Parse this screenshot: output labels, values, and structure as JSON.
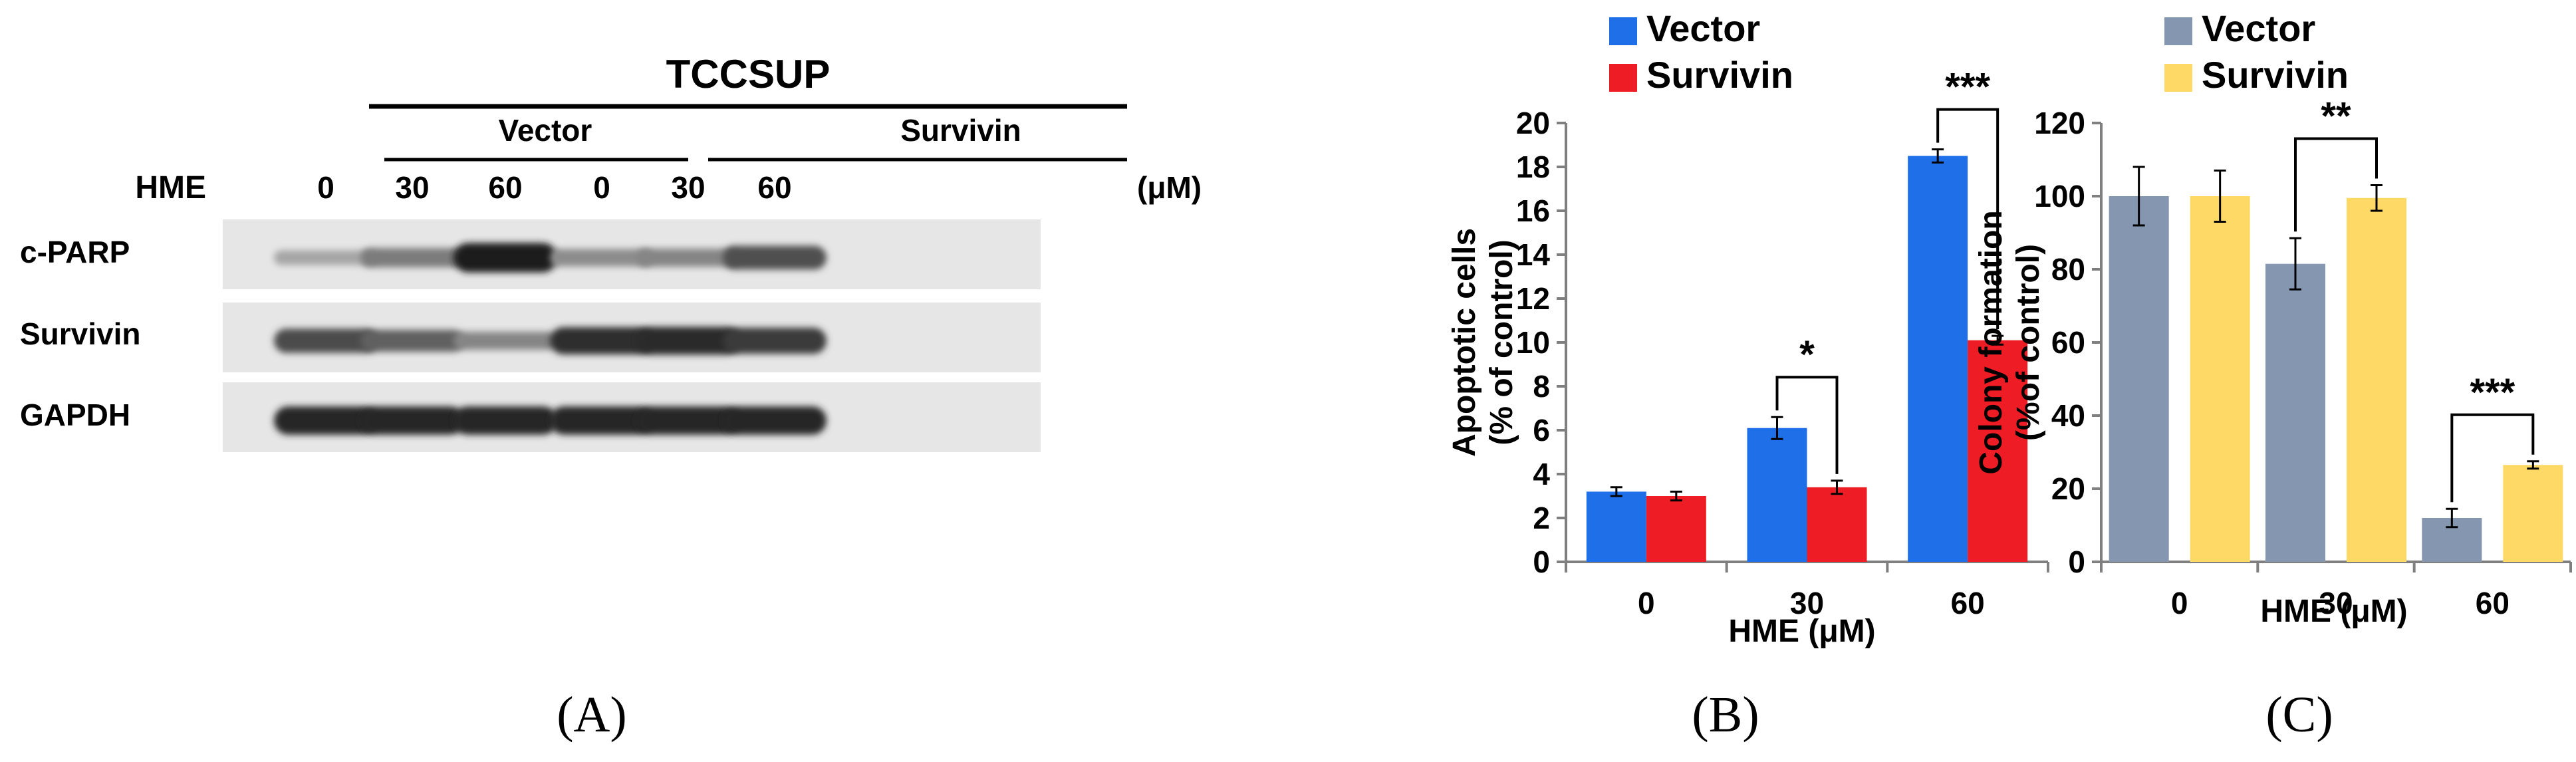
{
  "blot": {
    "cell_line": "TCCSUP",
    "groups": [
      "Vector",
      "Survivin"
    ],
    "row_label": "HME",
    "doses": [
      "0",
      "30",
      "60",
      "0",
      "30",
      "60"
    ],
    "unit": "(μM)",
    "bands": [
      {
        "label": "c-PARP",
        "intensity": [
          0.3,
          0.5,
          0.95,
          0.42,
          0.45,
          0.7
        ]
      },
      {
        "label": "Survivin",
        "intensity": [
          0.72,
          0.62,
          0.45,
          0.85,
          0.88,
          0.8
        ]
      },
      {
        "label": "GAPDH",
        "intensity": [
          0.9,
          0.9,
          0.9,
          0.9,
          0.9,
          0.9
        ]
      }
    ]
  },
  "panel_labels": {
    "a": "(A)",
    "b": "(B)",
    "c": "(C)"
  },
  "chart_data": [
    {
      "type": "bar",
      "categories": [
        "0",
        "30",
        "60"
      ],
      "series": [
        {
          "name": "Vector",
          "color": "#1f6fe8",
          "values": [
            3.2,
            6.1,
            18.5
          ],
          "errors": [
            0.2,
            0.5,
            0.3
          ]
        },
        {
          "name": "Survivin",
          "color": "#ee1c24",
          "values": [
            3.0,
            3.4,
            10.1
          ],
          "errors": [
            0.2,
            0.3,
            0.2
          ]
        }
      ],
      "xlabel": "HME (μM)",
      "ylabel_line1": "Apoptotic cells",
      "ylabel_line2": "(% of control)",
      "ylim": [
        0,
        20
      ],
      "yticks": [
        "0",
        "2",
        "4",
        "6",
        "8",
        "10",
        "12",
        "14",
        "16",
        "18",
        "20"
      ],
      "significance": [
        {
          "category": "30",
          "text": "*"
        },
        {
          "category": "60",
          "text": "***"
        }
      ],
      "legend": "top-left"
    },
    {
      "type": "bar",
      "categories": [
        "0",
        "30",
        "60"
      ],
      "series": [
        {
          "name": "Vector",
          "color": "#8496b0",
          "values": [
            100,
            81.5,
            12
          ],
          "errors": [
            8,
            7,
            2.5
          ]
        },
        {
          "name": "Survivin",
          "color": "#ffd966",
          "values": [
            100,
            99.5,
            26.5
          ],
          "errors": [
            7,
            3.5,
            1
          ]
        }
      ],
      "xlabel": "HME (μM)",
      "ylabel_line1": "Colony formation",
      "ylabel_line2": "(%of control)",
      "ylim": [
        0,
        120
      ],
      "yticks": [
        "0",
        "20",
        "40",
        "60",
        "80",
        "100",
        "120"
      ],
      "significance": [
        {
          "category": "30",
          "text": "**"
        },
        {
          "category": "60",
          "text": "***"
        }
      ],
      "legend": "top-left"
    }
  ]
}
